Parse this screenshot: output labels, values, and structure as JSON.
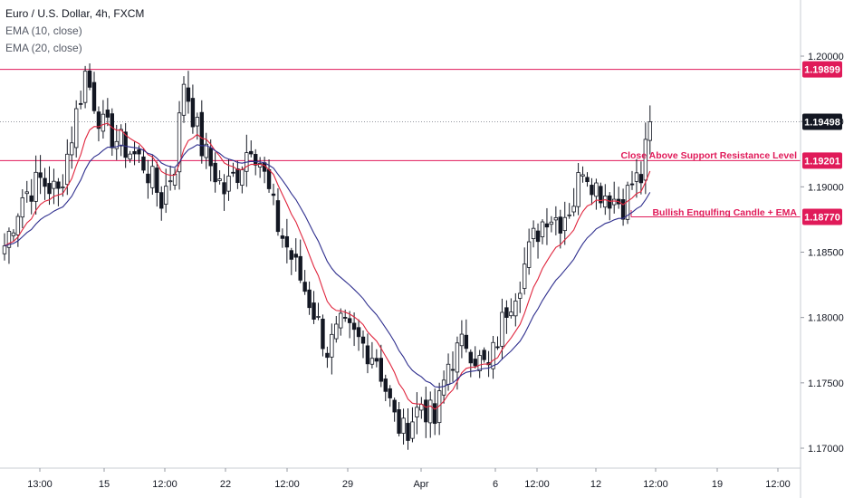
{
  "legend": {
    "title": "Euro / U.S. Dollar, 4h, FXCM",
    "ema10": "EMA (10, close)",
    "ema20": "EMA (20, close)"
  },
  "colors": {
    "background": "#ffffff",
    "candle_body": "#131722",
    "candle_up_fill": "#ffffff",
    "ema10": "#e0263e",
    "ema20": "#2f2f8e",
    "level_line": "#e01a59",
    "current_price_tag": "#131722",
    "axis_line": "#c9ccd3",
    "annotation_text": "#e01a59"
  },
  "annotations": {
    "close_above": "Close Above Support Resistance Level",
    "bullish_engulfing": "Bullish Engulfing Candle + EMA"
  },
  "chart_data": {
    "type": "candlestick",
    "symbol": "Euro / U.S. Dollar",
    "timeframe": "4h",
    "source": "FXCM",
    "ylim": [
      1.1685,
      1.2055
    ],
    "y_ticks": [
      "1.20000",
      "1.19500",
      "1.19000",
      "1.18500",
      "1.18000",
      "1.17500",
      "1.17000"
    ],
    "x_ticks": [
      "13:00",
      "15",
      "12:00",
      "22",
      "12:00",
      "29",
      "Apr",
      "6",
      "12:00",
      "12",
      "12:00",
      "19",
      "12:00"
    ],
    "price_tags": [
      {
        "label": "1.19899",
        "value": 1.19899,
        "style": "level"
      },
      {
        "label": "1.19498",
        "value": 1.19498,
        "style": "current"
      },
      {
        "label": "1.19201",
        "value": 1.19201,
        "style": "level"
      },
      {
        "label": "1.18770",
        "value": 1.1877,
        "style": "level"
      }
    ],
    "horizontal_levels": [
      1.19899,
      1.19201
    ],
    "current_price": 1.19498,
    "anchor_points": [
      [
        0,
        1.1855
      ],
      [
        4,
        1.1893
      ],
      [
        8,
        1.1905
      ],
      [
        12,
        1.1895
      ],
      [
        15,
        1.194
      ],
      [
        18,
        1.1987
      ],
      [
        22,
        1.1945
      ],
      [
        27,
        1.193
      ],
      [
        31,
        1.1918
      ],
      [
        35,
        1.189
      ],
      [
        38,
        1.1918
      ],
      [
        40,
        1.1982
      ],
      [
        44,
        1.193
      ],
      [
        49,
        1.1897
      ],
      [
        52,
        1.1912
      ],
      [
        55,
        1.1935
      ],
      [
        57,
        1.192
      ],
      [
        61,
        1.187
      ],
      [
        65,
        1.1838
      ],
      [
        69,
        1.1805
      ],
      [
        72,
        1.1775
      ],
      [
        75,
        1.1792
      ],
      [
        78,
        1.1785
      ],
      [
        83,
        1.177
      ],
      [
        87,
        1.1722
      ],
      [
        89,
        1.1712
      ],
      [
        93,
        1.1735
      ],
      [
        96,
        1.172
      ],
      [
        99,
        1.1765
      ],
      [
        103,
        1.1782
      ],
      [
        106,
        1.1766
      ],
      [
        108,
        1.176
      ],
      [
        112,
        1.1808
      ],
      [
        115,
        1.183
      ],
      [
        118,
        1.186
      ],
      [
        121,
        1.188
      ],
      [
        124,
        1.1875
      ],
      [
        127,
        1.189
      ],
      [
        129,
        1.1918
      ],
      [
        132,
        1.19
      ],
      [
        135,
        1.1893
      ],
      [
        138,
        1.1887
      ],
      [
        140,
        1.1903
      ],
      [
        142,
        1.1907
      ],
      [
        144,
        1.1945
      ]
    ]
  }
}
